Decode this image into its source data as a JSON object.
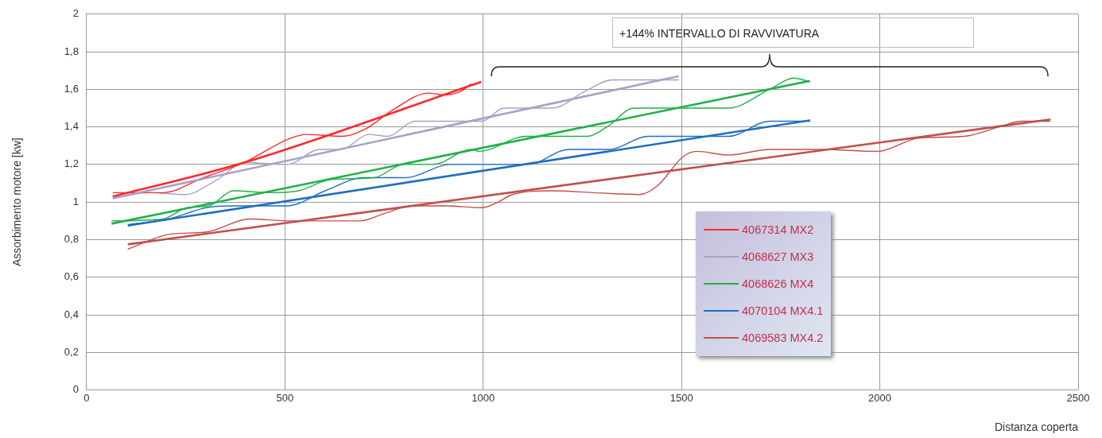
{
  "chart_data": {
    "type": "line",
    "ylabel": "Assorbimento motore [kw]",
    "xlabel": "Distanza coperta",
    "annotations": [
      "+144% INTERVALLO DI RAVVIVATURA"
    ],
    "xlim": [
      0,
      2500
    ],
    "xticks": [
      0,
      500,
      1000,
      1500,
      2000,
      2500
    ],
    "ylim": [
      0,
      2
    ],
    "yticks": [
      0,
      {
        "value": 0.2,
        "label": "0,2"
      },
      {
        "value": 0.4,
        "label": "0,4"
      },
      {
        "value": 0.6,
        "label": "0,6"
      },
      {
        "value": 0.8,
        "label": "0,8"
      },
      1,
      {
        "value": 1.2,
        "label": "1,2"
      },
      {
        "value": 1.4,
        "label": "1,4"
      },
      {
        "value": 1.6,
        "label": "1,6"
      },
      {
        "value": 1.8,
        "label": "1,8"
      },
      2
    ],
    "grid": true,
    "legend": "bottom right",
    "marker": "none",
    "line_style": "solid",
    "series": [
      {
        "name": "4067314 MX2",
        "color": "#ff2a2a",
        "x": [
          66,
          192,
          295,
          397,
          514,
          555,
          643,
          704,
          772,
          862,
          903,
          944,
          970
        ],
        "values": [
          1.05,
          1.05,
          1.13,
          1.21,
          1.34,
          1.36,
          1.35,
          1.39,
          1.49,
          1.58,
          1.57,
          1.59,
          1.63
        ]
      },
      {
        "name": "4068627 MX3",
        "color": "#a9a0c8",
        "x": [
          66,
          158,
          247,
          330,
          397,
          506,
          588,
          643,
          711,
          760,
          827,
          875,
          997,
          1052,
          1175,
          1257,
          1325,
          1394,
          1493
        ],
        "values": [
          1.02,
          1.05,
          1.04,
          1.12,
          1.21,
          1.2,
          1.28,
          1.28,
          1.36,
          1.35,
          1.43,
          1.43,
          1.43,
          1.5,
          1.5,
          1.59,
          1.65,
          1.65,
          1.65
        ]
      },
      {
        "name": "4068626 MX4",
        "color": "#22b04a",
        "x": [
          63,
          192,
          254,
          309,
          370,
          465,
          535,
          616,
          725,
          800,
          874,
          970,
          990,
          1108,
          1175,
          1263,
          1312,
          1380,
          1482,
          1619,
          1722,
          1783,
          1824
        ],
        "values": [
          0.9,
          0.91,
          0.97,
          0.98,
          1.06,
          1.05,
          1.06,
          1.12,
          1.13,
          1.2,
          1.2,
          1.28,
          1.27,
          1.35,
          1.35,
          1.35,
          1.4,
          1.5,
          1.5,
          1.5,
          1.6,
          1.66,
          1.64
        ]
      },
      {
        "name": "4070104 MX4.1",
        "color": "#1f6fc0",
        "x": [
          104,
          207,
          301,
          370,
          506,
          602,
          698,
          807,
          915,
          1052,
          1114,
          1216,
          1319,
          1415,
          1619,
          1722,
          1824
        ],
        "values": [
          0.88,
          0.91,
          0.97,
          0.98,
          0.98,
          1.06,
          1.13,
          1.13,
          1.2,
          1.2,
          1.2,
          1.28,
          1.28,
          1.35,
          1.35,
          1.43,
          1.43
        ]
      },
      {
        "name": "4069583 MX4.2",
        "color": "#c0504d",
        "x": [
          104,
          213,
          301,
          411,
          514,
          690,
          752,
          821,
          908,
          997,
          1038,
          1073,
          1175,
          1278,
          1394,
          1441,
          1503,
          1538,
          1619,
          1722,
          1857,
          1994,
          2097,
          2213,
          2301,
          2357,
          2430
        ],
        "values": [
          0.75,
          0.83,
          0.84,
          0.91,
          0.9,
          0.9,
          0.94,
          0.98,
          0.98,
          0.97,
          1.0,
          1.04,
          1.06,
          1.05,
          1.04,
          1.09,
          1.24,
          1.27,
          1.25,
          1.28,
          1.28,
          1.27,
          1.34,
          1.35,
          1.4,
          1.43,
          1.43
        ]
      },
      {
        "type": "line",
        "color": "#ff2a2a",
        "x": [
          66,
          397,
          995
        ],
        "values": [
          1.03,
          1.21,
          1.64
        ]
      },
      {
        "type": "line",
        "color": "#a9a0c8",
        "x": [
          66,
          1493
        ],
        "values": [
          1.02,
          1.67
        ]
      },
      {
        "type": "line",
        "color": "#22b04a",
        "x": [
          63,
          1824
        ],
        "values": [
          0.885,
          1.645
        ]
      },
      {
        "type": "line",
        "color": "#1f6fc0",
        "x": [
          104,
          1824
        ],
        "values": [
          0.875,
          1.435
        ]
      },
      {
        "type": "line",
        "color": "#c0504d",
        "x": [
          104,
          2430
        ],
        "values": [
          0.775,
          1.44
        ]
      }
    ]
  }
}
